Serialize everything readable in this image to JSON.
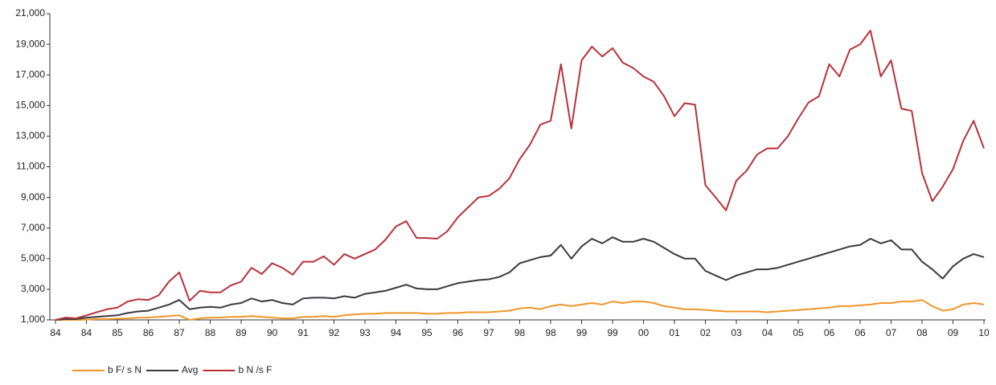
{
  "chart_data": {
    "type": "line",
    "categories": [
      "84",
      null,
      null,
      "84",
      null,
      null,
      "85",
      null,
      null,
      "86",
      null,
      null,
      "87",
      null,
      null,
      "88",
      null,
      null,
      "89",
      null,
      null,
      "90",
      null,
      null,
      "91",
      null,
      null,
      "92",
      null,
      null,
      "93",
      null,
      null,
      "94",
      null,
      null,
      "95",
      null,
      null,
      "96",
      null,
      null,
      "97",
      null,
      null,
      "98",
      null,
      null,
      "98",
      null,
      null,
      "99",
      null,
      null,
      "99",
      null,
      null,
      "00",
      null,
      null,
      "01",
      null,
      null,
      "02",
      null,
      null,
      "03",
      null,
      null,
      "04",
      null,
      null,
      "05",
      null,
      null,
      "06",
      null,
      null,
      "06",
      null,
      null,
      "07",
      null,
      null,
      "08",
      null,
      null,
      "09",
      null,
      null,
      "10"
    ],
    "series": [
      {
        "name": "b F/ s  N",
        "color": "#f0962a",
        "values": [
          1000,
          1000,
          1000,
          1020,
          1050,
          1050,
          1080,
          1100,
          1150,
          1150,
          1200,
          1250,
          1300,
          1000,
          1100,
          1150,
          1150,
          1200,
          1200,
          1250,
          1200,
          1150,
          1100,
          1100,
          1200,
          1200,
          1250,
          1200,
          1300,
          1350,
          1400,
          1400,
          1450,
          1450,
          1450,
          1450,
          1400,
          1400,
          1450,
          1450,
          1500,
          1500,
          1500,
          1550,
          1600,
          1750,
          1800,
          1700,
          1900,
          2000,
          1900,
          2000,
          2100,
          2000,
          2200,
          2100,
          2200,
          2200,
          2100,
          1900,
          1800,
          1700,
          1700,
          1650,
          1600,
          1550,
          1550,
          1550,
          1550,
          1500,
          1550,
          1600,
          1650,
          1700,
          1750,
          1800,
          1900,
          1900,
          1950,
          2000,
          2100,
          2100,
          2200,
          2200,
          2300,
          1900,
          1600,
          1700,
          2000,
          2100,
          2000
        ]
      },
      {
        "name": "Avg",
        "color": "#3a3a3f",
        "values": [
          1000,
          1050,
          1050,
          1150,
          1200,
          1250,
          1300,
          1450,
          1550,
          1600,
          1800,
          2000,
          2300,
          1700,
          1800,
          1850,
          1800,
          2000,
          2100,
          2400,
          2200,
          2300,
          2100,
          2000,
          2400,
          2450,
          2450,
          2400,
          2550,
          2450,
          2700,
          2800,
          2900,
          3100,
          3300,
          3050,
          3000,
          3000,
          3200,
          3400,
          3500,
          3600,
          3650,
          3800,
          4100,
          4700,
          4900,
          5100,
          5200,
          5900,
          5000,
          5800,
          6300,
          6000,
          6400,
          6100,
          6100,
          6300,
          6100,
          5700,
          5300,
          5000,
          5000,
          4200,
          3900,
          3600,
          3900,
          4100,
          4300,
          4300,
          4400,
          4600,
          4800,
          5000,
          5200,
          5400,
          5600,
          5800,
          5900,
          6300,
          6000,
          6200,
          5600,
          5600,
          4800,
          4300,
          3700,
          4500,
          5000,
          5300,
          5100
        ]
      },
      {
        "name": "b N /s F",
        "color": "#b8323a",
        "values": [
          1000,
          1150,
          1100,
          1300,
          1500,
          1700,
          1800,
          2200,
          2350,
          2300,
          2600,
          3500,
          4100,
          2250,
          2900,
          2800,
          2800,
          3250,
          3500,
          4400,
          4000,
          4700,
          4400,
          3950,
          4800,
          4800,
          5150,
          4600,
          5300,
          5000,
          5300,
          5600,
          6250,
          7100,
          7450,
          6350,
          6350,
          6300,
          6800,
          7700,
          8350,
          9000,
          9100,
          9550,
          10250,
          11500,
          12450,
          13750,
          14000,
          17700,
          13500,
          17950,
          18850,
          18200,
          18750,
          17800,
          17450,
          16900,
          16550,
          15600,
          14300,
          15150,
          15050,
          9800,
          9000,
          8150,
          10100,
          10750,
          11800,
          12200,
          12200,
          13000,
          14150,
          15200,
          15600,
          17700,
          16900,
          18650,
          19000,
          19900,
          16900,
          17950,
          14800,
          14650,
          10600,
          8750,
          9700,
          10850,
          12700,
          14000,
          12200
        ]
      }
    ],
    "ylim": [
      1000,
      21000
    ],
    "yticks": [
      {
        "value": 1000,
        "label": "1,000"
      },
      {
        "value": 3000,
        "label": "3,000"
      },
      {
        "value": 5000,
        "label": "5,000"
      },
      {
        "value": 7000,
        "label": "7,000"
      },
      {
        "value": 9000,
        "label": "9,000"
      },
      {
        "value": 11000,
        "label": "11,000"
      },
      {
        "value": 13000,
        "label": "13,000"
      },
      {
        "value": 15000,
        "label": "15,000"
      },
      {
        "value": 17000,
        "label": "17,000"
      },
      {
        "value": 19000,
        "label": "19,000"
      },
      {
        "value": 21000,
        "label": "21,000"
      }
    ],
    "grid": false
  }
}
